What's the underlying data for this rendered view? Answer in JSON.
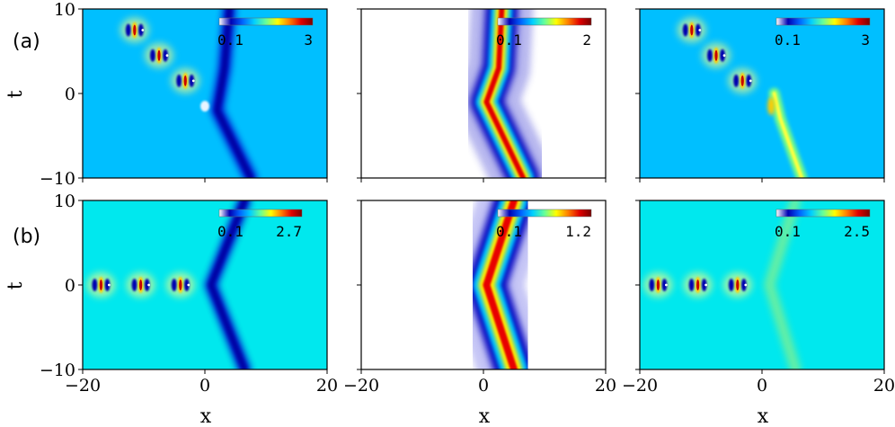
{
  "figure": {
    "row_labels": [
      "(a)",
      "(b)"
    ],
    "xlabel": "x",
    "ylabel": "t"
  },
  "colormap": [
    "#ffffff",
    "#0000b4",
    "#0064ff",
    "#00d0ff",
    "#66ff99",
    "#ffff00",
    "#ff8000",
    "#e00000",
    "#780000"
  ],
  "chart_data": [
    {
      "type": "heatmap",
      "row": "a",
      "col": 1,
      "background": "#00bfff",
      "xlim": [
        -20,
        20
      ],
      "ylim": [
        -10,
        10
      ],
      "xticks": [
        "-20",
        "20"
      ],
      "yticks": [
        "10",
        "0",
        "-10"
      ],
      "colorbar": {
        "min": "0.1",
        "max": "3"
      },
      "features": [
        {
          "kind": "dark-line",
          "points": [
            [
              4,
              10
            ],
            [
              3.2,
              3
            ],
            [
              2,
              -2
            ],
            [
              7.5,
              -10
            ]
          ]
        },
        {
          "kind": "breather",
          "x": -11.5,
          "t": 7.5
        },
        {
          "kind": "breather",
          "x": -7.5,
          "t": 4.5
        },
        {
          "kind": "breather",
          "x": -3.2,
          "t": 1.5
        },
        {
          "kind": "dip",
          "x": 0,
          "t": -1.5
        }
      ]
    },
    {
      "type": "heatmap",
      "row": "a",
      "col": 2,
      "background": "#ffffff",
      "xlim": [
        -20,
        20
      ],
      "ylim": [
        -10,
        10
      ],
      "xticks": [
        "-20",
        "20"
      ],
      "yticks": [
        "10",
        "0",
        "-10"
      ],
      "colorbar": {
        "min": "0.1",
        "max": "2"
      },
      "features": [
        {
          "kind": "twin-bright-line",
          "points": [
            [
              3,
              10
            ],
            [
              2.5,
              3
            ],
            [
              0.5,
              -1
            ],
            [
              6.5,
              -10
            ]
          ]
        }
      ]
    },
    {
      "type": "heatmap",
      "row": "a",
      "col": 3,
      "background": "#00bfff",
      "xlim": [
        -20,
        20
      ],
      "ylim": [
        -10,
        10
      ],
      "xticks": [
        "-20",
        "20"
      ],
      "yticks": [
        "10",
        "0",
        "-10"
      ],
      "colorbar": {
        "min": "0.1",
        "max": "3"
      },
      "features": [
        {
          "kind": "bright-line",
          "points": [
            [
              2,
              0
            ],
            [
              3,
              -3
            ],
            [
              6.5,
              -10
            ]
          ]
        },
        {
          "kind": "breather",
          "x": -11.5,
          "t": 7.5
        },
        {
          "kind": "breather",
          "x": -7.5,
          "t": 4.5
        },
        {
          "kind": "breather",
          "x": -3.2,
          "t": 1.5
        },
        {
          "kind": "bump",
          "x": 1.5,
          "t": -1.5
        }
      ]
    },
    {
      "type": "heatmap",
      "row": "b",
      "col": 1,
      "background": "#00e8ee",
      "xlim": [
        -20,
        20
      ],
      "ylim": [
        -10,
        10
      ],
      "xticks": [
        "-20",
        "0",
        "20"
      ],
      "yticks": [
        "10",
        "0",
        "-10"
      ],
      "colorbar": {
        "min": "0.1",
        "max": "2.7"
      },
      "features": [
        {
          "kind": "dark-line",
          "points": [
            [
              6.5,
              10
            ],
            [
              1,
              0
            ],
            [
              6.5,
              -10
            ]
          ]
        },
        {
          "kind": "breather",
          "x": -17,
          "t": 0
        },
        {
          "kind": "breather",
          "x": -10.5,
          "t": 0
        },
        {
          "kind": "breather",
          "x": -4,
          "t": 0
        }
      ]
    },
    {
      "type": "heatmap",
      "row": "b",
      "col": 2,
      "background": "#ffffff",
      "xlim": [
        -20,
        20
      ],
      "ylim": [
        -10,
        10
      ],
      "xticks": [
        "-20",
        "0",
        "20"
      ],
      "yticks": [
        "10",
        "0",
        "-10"
      ],
      "colorbar": {
        "min": "0.1",
        "max": "1.2"
      },
      "features": [
        {
          "kind": "wide-bright-line",
          "points": [
            [
              5,
              10
            ],
            [
              0.5,
              0
            ],
            [
              5,
              -10
            ]
          ]
        }
      ]
    },
    {
      "type": "heatmap",
      "row": "b",
      "col": 3,
      "background": "#00e8ee",
      "xlim": [
        -20,
        20
      ],
      "ylim": [
        -10,
        10
      ],
      "xticks": [
        "-20",
        "0",
        "20"
      ],
      "yticks": [
        "10",
        "0",
        "-10"
      ],
      "colorbar": {
        "min": "0.1",
        "max": "2.5"
      },
      "features": [
        {
          "kind": "faint-line",
          "points": [
            [
              5.5,
              10
            ],
            [
              1.2,
              0
            ],
            [
              5.5,
              -10
            ]
          ]
        },
        {
          "kind": "breather",
          "x": -17,
          "t": 0
        },
        {
          "kind": "breather",
          "x": -10.5,
          "t": 0
        },
        {
          "kind": "breather",
          "x": -4,
          "t": 0
        }
      ]
    }
  ]
}
